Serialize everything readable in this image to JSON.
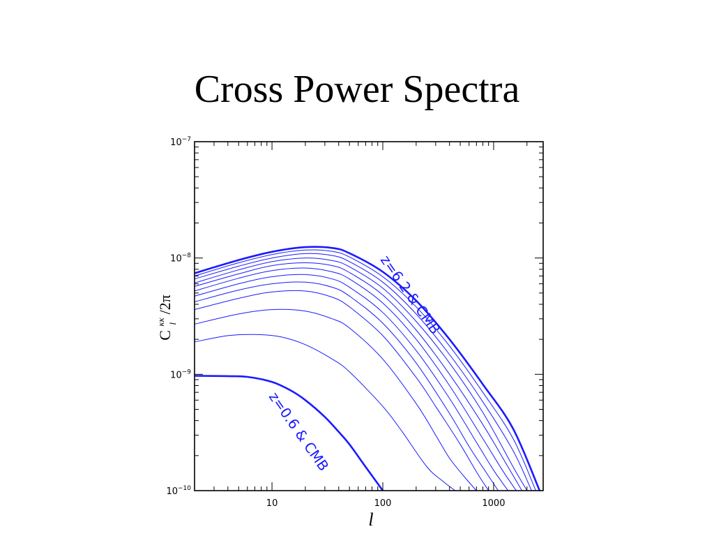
{
  "slide": {
    "title": "Cross Power Spectra"
  },
  "chart_data": {
    "type": "line",
    "title": "",
    "xlabel": "l",
    "ylabel": "C_l^κκ/2π",
    "ylabel_parts": {
      "base": "C",
      "sub": "l",
      "sup": "κκ",
      "tail": "/2π"
    },
    "xscale": "log",
    "yscale": "log",
    "xlim": [
      2,
      2800
    ],
    "ylim": [
      1e-10,
      1e-07
    ],
    "grid": false,
    "x_ticks": [
      {
        "value": 10,
        "label": "10"
      },
      {
        "value": 100,
        "label": "100"
      },
      {
        "value": 1000,
        "label": "1000"
      }
    ],
    "y_ticks": [
      {
        "value": 1e-10,
        "base": "10",
        "exp": "−10"
      },
      {
        "value": 1e-09,
        "base": "10",
        "exp": "−9"
      },
      {
        "value": 1e-08,
        "base": "10",
        "exp": "−8"
      },
      {
        "value": 1e-07,
        "base": "10",
        "exp": "−7"
      }
    ],
    "line_color": "#1a1aff",
    "annotations": [
      {
        "text": "z=6.2 & CMB"
      },
      {
        "text": "z=0.6 & CMB"
      }
    ],
    "series": [
      {
        "x": [
          2,
          5,
          10,
          20,
          35,
          50,
          100,
          200,
          400,
          800,
          1500,
          2600
        ],
        "y": [
          7.4e-09,
          9.6e-09,
          1.13e-08,
          1.24e-08,
          1.22e-08,
          1.1e-08,
          7.6e-09,
          4.3e-09,
          2e-09,
          8.2e-10,
          3.4e-10,
          1e-10
        ],
        "bold": true
      },
      {
        "x": [
          2,
          5,
          10,
          20,
          35,
          50,
          100,
          200,
          400,
          800,
          1500,
          2400
        ],
        "y": [
          7e-09,
          9.1e-09,
          1.07e-08,
          1.17e-08,
          1.14e-08,
          1.02e-08,
          6.9e-09,
          3.8e-09,
          1.75e-09,
          7e-10,
          2.8e-10,
          1e-10
        ]
      },
      {
        "x": [
          2,
          5,
          10,
          20,
          35,
          50,
          100,
          200,
          400,
          800,
          1500,
          2200
        ],
        "y": [
          6.6e-09,
          8.5e-09,
          1e-08,
          1.09e-08,
          1.05e-08,
          9.3e-09,
          6.2e-09,
          3.3e-09,
          1.48e-09,
          5.8e-10,
          2.2e-10,
          1e-10
        ]
      },
      {
        "x": [
          2,
          5,
          10,
          20,
          35,
          50,
          100,
          200,
          400,
          800,
          1500,
          2000
        ],
        "y": [
          6.1e-09,
          7.9e-09,
          9.3e-09,
          1e-08,
          9.5e-09,
          8.4e-09,
          5.5e-09,
          2.85e-09,
          1.25e-09,
          4.7e-10,
          1.6e-10,
          1e-10
        ]
      },
      {
        "x": [
          2,
          5,
          10,
          20,
          35,
          50,
          100,
          200,
          400,
          800,
          1300,
          1800
        ],
        "y": [
          5.7e-09,
          7.3e-09,
          8.6e-09,
          9.1e-09,
          8.6e-09,
          7.5e-09,
          4.8e-09,
          2.4e-09,
          1e-09,
          3.7e-10,
          1.7e-10,
          1e-10
        ]
      },
      {
        "x": [
          2,
          5,
          10,
          20,
          35,
          50,
          100,
          200,
          400,
          800,
          1200,
          1600
        ],
        "y": [
          5.2e-09,
          6.7e-09,
          7.8e-09,
          8.2e-09,
          7.6e-09,
          6.6e-09,
          4.1e-09,
          2e-09,
          8e-10,
          2.8e-10,
          1.5e-10,
          1e-10
        ]
      },
      {
        "x": [
          2,
          5,
          10,
          20,
          35,
          50,
          100,
          200,
          400,
          700,
          1000,
          1350
        ],
        "y": [
          4.7e-09,
          6e-09,
          6.9e-09,
          7.2e-09,
          6.6e-09,
          5.6e-09,
          3.4e-09,
          1.6e-09,
          6.2e-10,
          2.6e-10,
          1.5e-10,
          1e-10
        ]
      },
      {
        "x": [
          2,
          5,
          10,
          20,
          35,
          50,
          100,
          200,
          400,
          600,
          850,
          1100
        ],
        "y": [
          4.2e-09,
          5.3e-09,
          6e-09,
          6.2e-09,
          5.6e-09,
          4.7e-09,
          2.75e-09,
          1.25e-09,
          4.6e-10,
          2.4e-10,
          1.45e-10,
          1e-10
        ]
      },
      {
        "x": [
          2,
          5,
          10,
          20,
          35,
          50,
          100,
          200,
          300,
          500,
          700,
          900
        ],
        "y": [
          3.6e-09,
          4.5e-09,
          5.1e-09,
          5.2e-09,
          4.6e-09,
          3.8e-09,
          2.15e-09,
          9.4e-10,
          5.3e-10,
          2.5e-10,
          1.45e-10,
          1e-10
        ]
      },
      {
        "x": [
          2,
          5,
          10,
          20,
          35,
          50,
          100,
          200,
          300,
          400,
          550,
          700
        ],
        "y": [
          2.7e-09,
          3.3e-09,
          3.6e-09,
          3.5e-09,
          3e-09,
          2.5e-09,
          1.35e-09,
          5.6e-10,
          3e-10,
          1.9e-10,
          1.3e-10,
          1e-10
        ]
      },
      {
        "x": [
          2,
          4,
          7,
          12,
          20,
          35,
          50,
          100,
          150,
          250,
          350,
          450
        ],
        "y": [
          1.9e-09,
          2.15e-09,
          2.2e-09,
          2.1e-09,
          1.8e-09,
          1.35e-09,
          1.05e-09,
          5.3e-10,
          3.2e-10,
          1.6e-10,
          1.2e-10,
          1e-10
        ]
      },
      {
        "x": [
          2,
          4,
          6,
          10,
          15,
          20,
          30,
          40,
          50,
          70,
          100
        ],
        "y": [
          9.7e-10,
          9.65e-10,
          9.5e-10,
          8.6e-10,
          7.2e-10,
          6e-10,
          4.3e-10,
          3.2e-10,
          2.5e-10,
          1.6e-10,
          1e-10
        ],
        "bold": true
      }
    ]
  }
}
